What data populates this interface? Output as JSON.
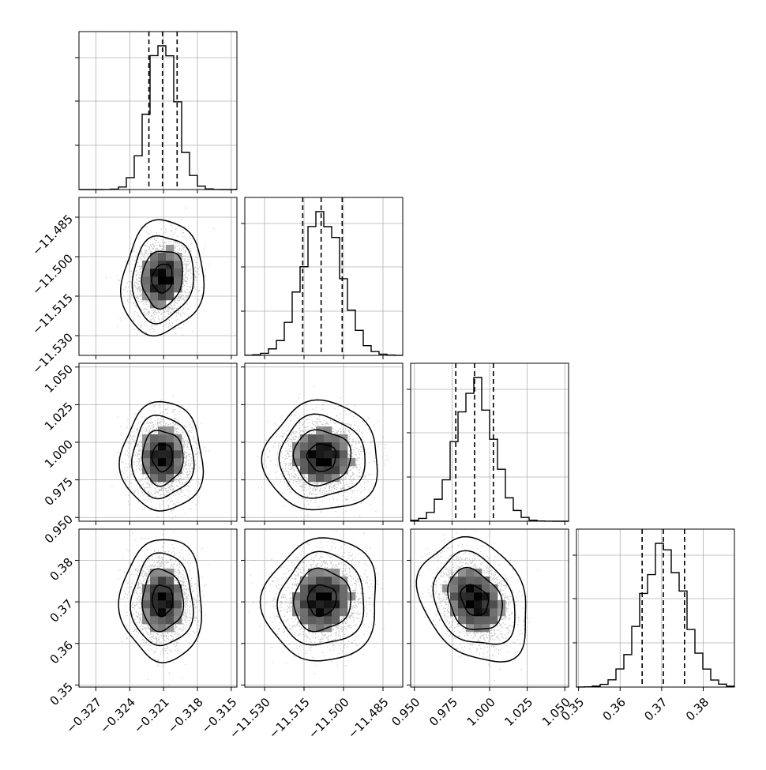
{
  "chart_data": {
    "type": "corner",
    "parameters": [
      {
        "range": [
          -0.3285,
          -0.3145
        ],
        "ticks": [
          -0.327,
          -0.324,
          -0.321,
          -0.318,
          -0.315
        ],
        "tick_labels": [
          "−0.327",
          "−0.324",
          "−0.321",
          "−0.318",
          "−0.315"
        ],
        "quantiles": [
          -0.3223,
          -0.3211,
          -0.3198
        ],
        "mean": -0.3211,
        "sigma": 0.00125
      },
      {
        "range": [
          -11.5375,
          -11.4775
        ],
        "ticks": [
          -11.53,
          -11.515,
          -11.5,
          -11.485
        ],
        "tick_labels": [
          "−11.530",
          "−11.515",
          "−11.500",
          "−11.485"
        ],
        "quantiles": [
          -11.5155,
          -11.5085,
          -11.5005
        ],
        "mean": -11.5082,
        "sigma": 0.0075
      },
      {
        "range": [
          0.9475,
          1.0525
        ],
        "ticks": [
          0.95,
          0.975,
          1.0,
          1.025,
          1.05
        ],
        "tick_labels": [
          "0.950",
          "0.975",
          "1.000",
          "1.025",
          "1.050"
        ],
        "quantiles": [
          0.9775,
          0.99,
          1.0025
        ],
        "mean": 0.99,
        "sigma": 0.0125
      },
      {
        "range": [
          0.3495,
          0.3875
        ],
        "ticks": [
          0.35,
          0.36,
          0.37,
          0.38
        ],
        "tick_labels": [
          "0.35",
          "0.36",
          "0.37",
          "0.38"
        ],
        "quantiles": [
          0.3653,
          0.3704,
          0.3755
        ],
        "mean": 0.3704,
        "sigma": 0.0051
      }
    ],
    "correlations": {
      "0-1": 0.1,
      "0-2": 0.0,
      "0-3": 0.0,
      "1-2": 0.0,
      "1-3": 0.05,
      "2-3": -0.25
    },
    "histogram_bins": 20,
    "contour_levels_sigma": [
      0.5,
      1.0,
      1.5,
      2.0
    ],
    "grid": true,
    "colors": {
      "line": "#000000",
      "points": "#555555",
      "grid": "#b0b0b0"
    }
  }
}
